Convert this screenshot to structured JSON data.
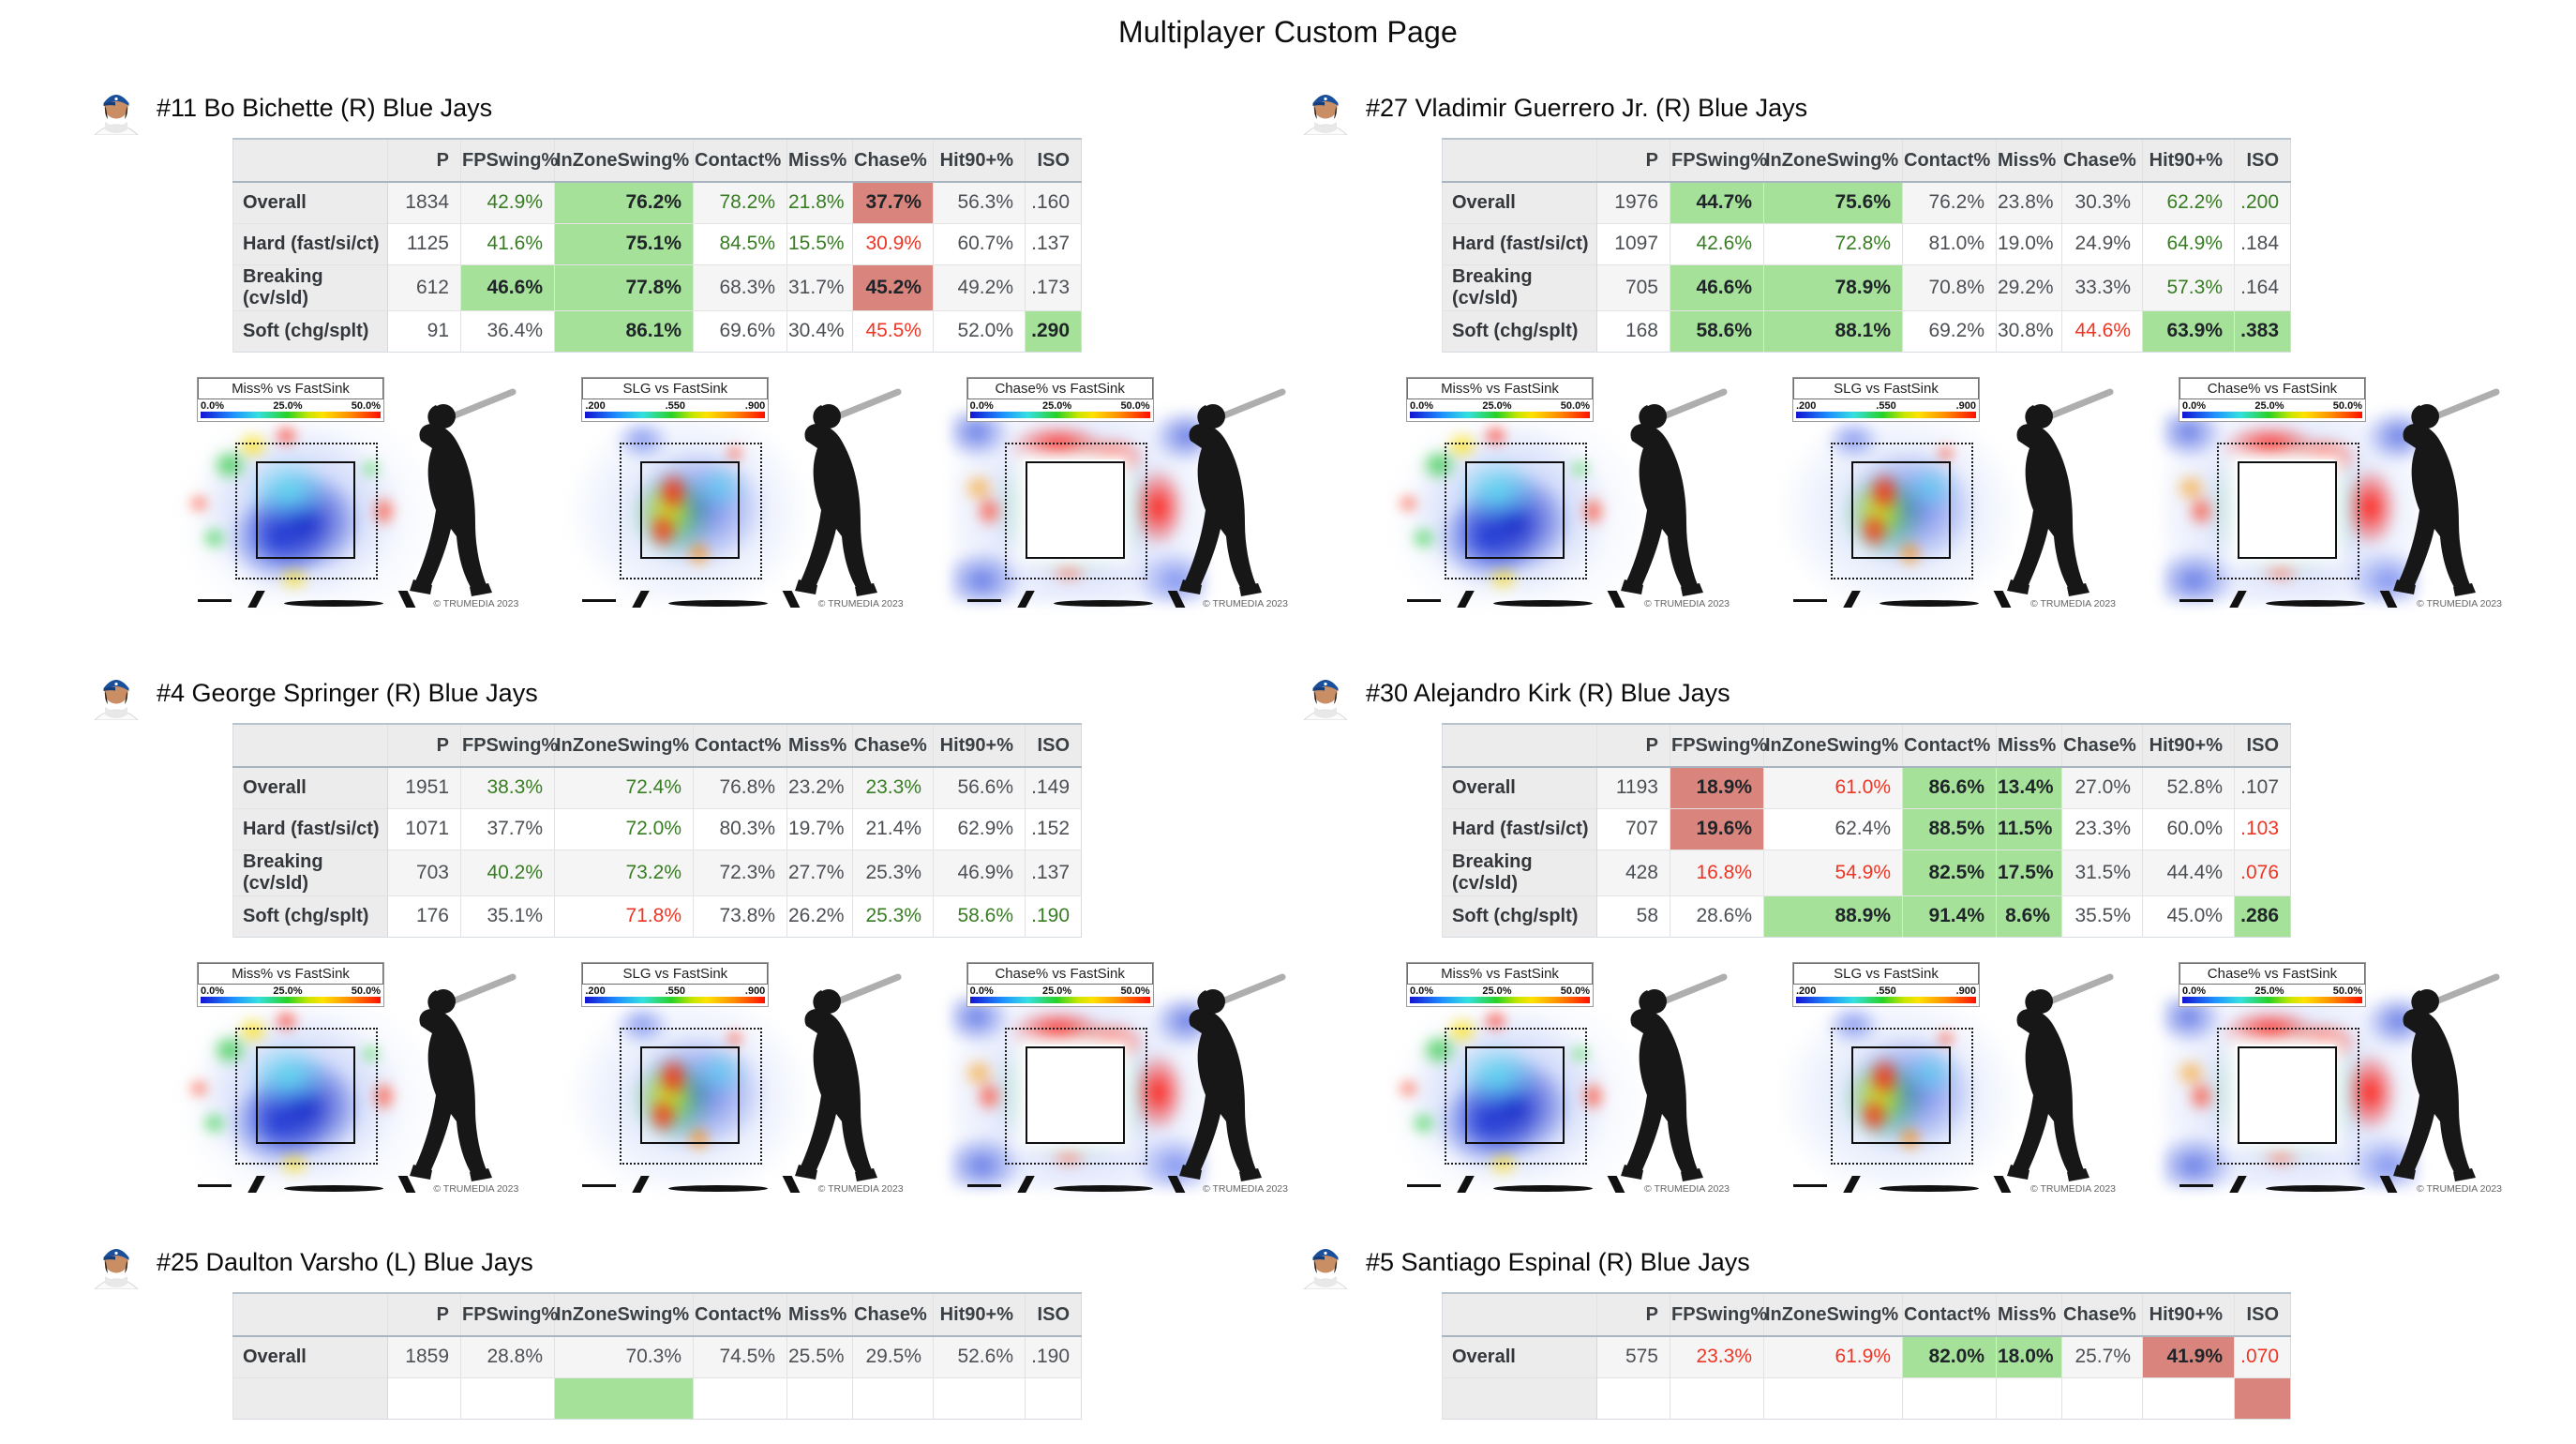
{
  "page": {
    "title": "Multiplayer Custom Page"
  },
  "colors": {
    "green_bg": "#a6e19a",
    "red_bg": "#d9857d",
    "green_text": "#377d22",
    "red_text": "#ee3524",
    "team_cap_blue": "#1a4f9c"
  },
  "table": {
    "columns": [
      "",
      "P",
      "FPSwing%",
      "InZoneSwing%",
      "Contact%",
      "Miss%",
      "Chase%",
      "Hit90+%",
      "ISO"
    ]
  },
  "heatmap_common": {
    "watermark": "© TRUMEDIA 2023"
  },
  "players": [
    {
      "name": "#11 Bo Bichette (R) Blue Jays",
      "rows": [
        {
          "label": "Overall",
          "values": [
            "1834",
            "42.9%",
            "76.2%",
            "78.2%",
            "21.8%",
            "37.7%",
            "56.3%",
            ".160"
          ],
          "styles": [
            "",
            "gt",
            "gb",
            "gt",
            "gt",
            "rb",
            "",
            ""
          ]
        },
        {
          "label": "Hard (fast/si/ct)",
          "values": [
            "1125",
            "41.6%",
            "75.1%",
            "84.5%",
            "15.5%",
            "30.9%",
            "60.7%",
            ".137"
          ],
          "styles": [
            "",
            "gt",
            "gb",
            "gt",
            "gt",
            "rt",
            "",
            ""
          ]
        },
        {
          "label": "Breaking (cv/sld)",
          "values": [
            "612",
            "46.6%",
            "77.8%",
            "68.3%",
            "31.7%",
            "45.2%",
            "49.2%",
            ".173"
          ],
          "styles": [
            "",
            "gb",
            "gb",
            "",
            "",
            "rb",
            "",
            ""
          ]
        },
        {
          "label": "Soft (chg/splt)",
          "values": [
            "91",
            "36.4%",
            "86.1%",
            "69.6%",
            "30.4%",
            "45.5%",
            "52.0%",
            ".290"
          ],
          "styles": [
            "",
            "",
            "gb",
            "",
            "",
            "rt",
            "",
            "gb"
          ]
        }
      ],
      "heatmaps": [
        {
          "title": "Miss% vs FastSink",
          "ticks": [
            "0.0%",
            "25.0%",
            "50.0%"
          ],
          "pattern": "miss",
          "type": "heatmap"
        },
        {
          "title": "SLG vs FastSink",
          "ticks": [
            ".200",
            ".550",
            ".900"
          ],
          "pattern": "slg",
          "type": "heatmap"
        },
        {
          "title": "Chase% vs FastSink",
          "ticks": [
            "0.0%",
            "25.0%",
            "50.0%"
          ],
          "pattern": "chase",
          "type": "heatmap"
        }
      ]
    },
    {
      "name": "#27 Vladimir Guerrero Jr. (R) Blue Jays",
      "rows": [
        {
          "label": "Overall",
          "values": [
            "1976",
            "44.7%",
            "75.6%",
            "76.2%",
            "23.8%",
            "30.3%",
            "62.2%",
            ".200"
          ],
          "styles": [
            "",
            "gb",
            "gb",
            "",
            "",
            "",
            "gt",
            "gt"
          ]
        },
        {
          "label": "Hard (fast/si/ct)",
          "values": [
            "1097",
            "42.6%",
            "72.8%",
            "81.0%",
            "19.0%",
            "24.9%",
            "64.9%",
            ".184"
          ],
          "styles": [
            "",
            "gt",
            "gt",
            "",
            "",
            "",
            "gt",
            ""
          ]
        },
        {
          "label": "Breaking (cv/sld)",
          "values": [
            "705",
            "46.6%",
            "78.9%",
            "70.8%",
            "29.2%",
            "33.3%",
            "57.3%",
            ".164"
          ],
          "styles": [
            "",
            "gb",
            "gb",
            "",
            "",
            "",
            "gt",
            ""
          ]
        },
        {
          "label": "Soft (chg/splt)",
          "values": [
            "168",
            "58.6%",
            "88.1%",
            "69.2%",
            "30.8%",
            "44.6%",
            "63.9%",
            ".383"
          ],
          "styles": [
            "",
            "gb",
            "gb",
            "",
            "",
            "rt",
            "gb",
            "gb"
          ]
        }
      ],
      "heatmaps": [
        {
          "title": "Miss% vs FastSink",
          "ticks": [
            "0.0%",
            "25.0%",
            "50.0%"
          ],
          "pattern": "miss",
          "type": "heatmap"
        },
        {
          "title": "SLG vs FastSink",
          "ticks": [
            ".200",
            ".550",
            ".900"
          ],
          "pattern": "slg",
          "type": "heatmap"
        },
        {
          "title": "Chase% vs FastSink",
          "ticks": [
            "0.0%",
            "25.0%",
            "50.0%"
          ],
          "pattern": "chase",
          "type": "heatmap"
        }
      ]
    },
    {
      "name": "#4 George Springer (R) Blue Jays",
      "rows": [
        {
          "label": "Overall",
          "values": [
            "1951",
            "38.3%",
            "72.4%",
            "76.8%",
            "23.2%",
            "23.3%",
            "56.6%",
            ".149"
          ],
          "styles": [
            "",
            "gt",
            "gt",
            "",
            "",
            "gt",
            "",
            ""
          ]
        },
        {
          "label": "Hard (fast/si/ct)",
          "values": [
            "1071",
            "37.7%",
            "72.0%",
            "80.3%",
            "19.7%",
            "21.4%",
            "62.9%",
            ".152"
          ],
          "styles": [
            "",
            "",
            "gt",
            "",
            "",
            "",
            "",
            ""
          ]
        },
        {
          "label": "Breaking (cv/sld)",
          "values": [
            "703",
            "40.2%",
            "73.2%",
            "72.3%",
            "27.7%",
            "25.3%",
            "46.9%",
            ".137"
          ],
          "styles": [
            "",
            "gt",
            "gt",
            "",
            "",
            "",
            "",
            ""
          ]
        },
        {
          "label": "Soft (chg/splt)",
          "values": [
            "176",
            "35.1%",
            "71.8%",
            "73.8%",
            "26.2%",
            "25.3%",
            "58.6%",
            ".190"
          ],
          "styles": [
            "",
            "",
            "rt",
            "",
            "",
            "gt",
            "gt",
            "gt"
          ]
        }
      ],
      "heatmaps": [
        {
          "title": "Miss% vs FastSink",
          "ticks": [
            "0.0%",
            "25.0%",
            "50.0%"
          ],
          "pattern": "miss",
          "type": "heatmap"
        },
        {
          "title": "SLG vs FastSink",
          "ticks": [
            ".200",
            ".550",
            ".900"
          ],
          "pattern": "slg",
          "type": "heatmap"
        },
        {
          "title": "Chase% vs FastSink",
          "ticks": [
            "0.0%",
            "25.0%",
            "50.0%"
          ],
          "pattern": "chase",
          "type": "heatmap"
        }
      ]
    },
    {
      "name": "#30 Alejandro Kirk (R) Blue Jays",
      "rows": [
        {
          "label": "Overall",
          "values": [
            "1193",
            "18.9%",
            "61.0%",
            "86.6%",
            "13.4%",
            "27.0%",
            "52.8%",
            ".107"
          ],
          "styles": [
            "",
            "rb",
            "rt",
            "gb",
            "gb",
            "",
            "",
            ""
          ]
        },
        {
          "label": "Hard (fast/si/ct)",
          "values": [
            "707",
            "19.6%",
            "62.4%",
            "88.5%",
            "11.5%",
            "23.3%",
            "60.0%",
            ".103"
          ],
          "styles": [
            "",
            "rb",
            "",
            "gb",
            "gb",
            "",
            "",
            "rt"
          ]
        },
        {
          "label": "Breaking (cv/sld)",
          "values": [
            "428",
            "16.8%",
            "54.9%",
            "82.5%",
            "17.5%",
            "31.5%",
            "44.4%",
            ".076"
          ],
          "styles": [
            "",
            "rt",
            "rt",
            "gb",
            "gb",
            "",
            "",
            "rt"
          ]
        },
        {
          "label": "Soft (chg/splt)",
          "values": [
            "58",
            "28.6%",
            "88.9%",
            "91.4%",
            "8.6%",
            "35.5%",
            "45.0%",
            ".286"
          ],
          "styles": [
            "",
            "",
            "gb",
            "gb",
            "gb",
            "",
            "",
            "gb"
          ]
        }
      ],
      "heatmaps": [
        {
          "title": "Miss% vs FastSink",
          "ticks": [
            "0.0%",
            "25.0%",
            "50.0%"
          ],
          "pattern": "miss",
          "type": "heatmap"
        },
        {
          "title": "SLG vs FastSink",
          "ticks": [
            ".200",
            ".550",
            ".900"
          ],
          "pattern": "slg",
          "type": "heatmap"
        },
        {
          "title": "Chase% vs FastSink",
          "ticks": [
            "0.0%",
            "25.0%",
            "50.0%"
          ],
          "pattern": "chase",
          "type": "heatmap"
        }
      ]
    },
    {
      "name": "#25 Daulton Varsho (L) Blue Jays",
      "rows": [
        {
          "label": "Overall",
          "values": [
            "1859",
            "28.8%",
            "70.3%",
            "74.5%",
            "25.5%",
            "29.5%",
            "52.6%",
            ".190"
          ],
          "styles": [
            "",
            "",
            "",
            "",
            "",
            "",
            "",
            ""
          ]
        },
        {
          "label": "",
          "values": [
            "",
            "",
            "",
            "",
            "",
            "",
            "",
            ""
          ],
          "styles": [
            "",
            "",
            "gb",
            "",
            "",
            "",
            "",
            ""
          ]
        }
      ]
    },
    {
      "name": "#5 Santiago Espinal (R) Blue Jays",
      "rows": [
        {
          "label": "Overall",
          "values": [
            "575",
            "23.3%",
            "61.9%",
            "82.0%",
            "18.0%",
            "25.7%",
            "41.9%",
            ".070"
          ],
          "styles": [
            "",
            "rt",
            "rt",
            "gb",
            "gb",
            "",
            "rb",
            "rt"
          ]
        },
        {
          "label": "",
          "values": [
            "",
            "",
            "",
            "",
            "",
            "",
            "",
            ""
          ],
          "styles": [
            "",
            "",
            "",
            "",
            "",
            "",
            "",
            "rb"
          ]
        }
      ]
    }
  ]
}
